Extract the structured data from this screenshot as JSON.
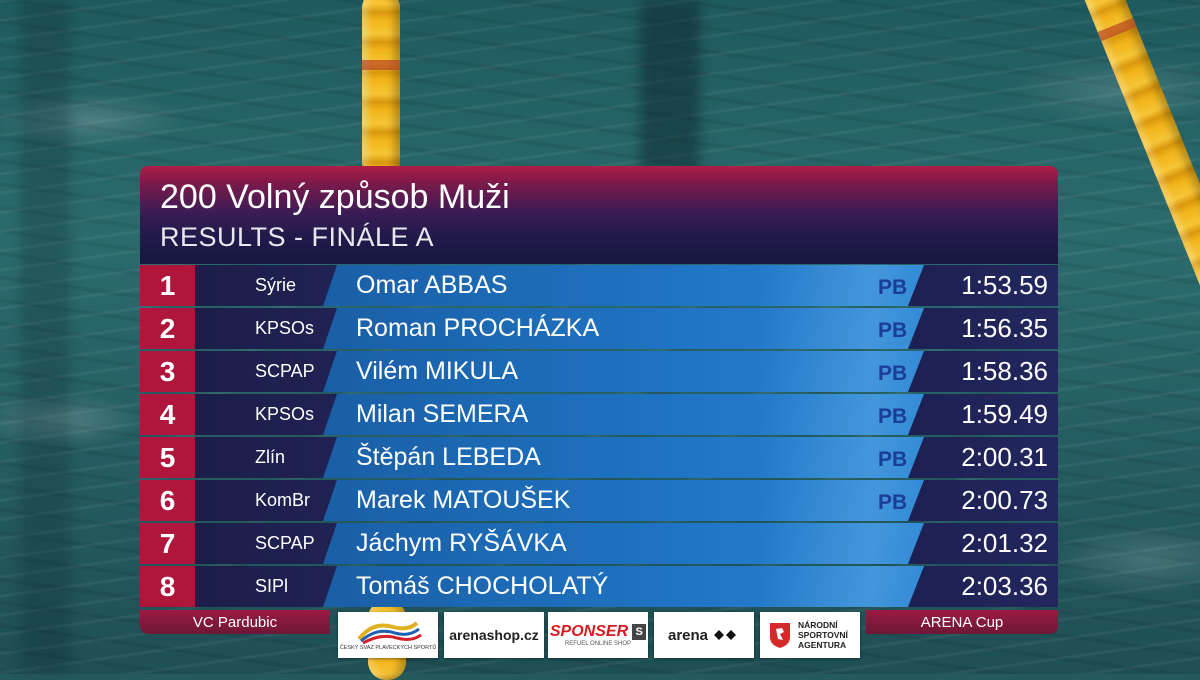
{
  "header": {
    "title": "200 Volný způsob Muži",
    "subtitle": "RESULTS - FINÁLE A"
  },
  "results": [
    {
      "rank": "1",
      "club": "Sýrie",
      "name": "Omar ABBAS",
      "pb": "PB",
      "time": "1:53.59"
    },
    {
      "rank": "2",
      "club": "KPSOs",
      "name": "Roman PROCHÁZKA",
      "pb": "PB",
      "time": "1:56.35"
    },
    {
      "rank": "3",
      "club": "SCPAP",
      "name": "Vilém MIKULA",
      "pb": "PB",
      "time": "1:58.36"
    },
    {
      "rank": "4",
      "club": "KPSOs",
      "name": "Milan SEMERA",
      "pb": "PB",
      "time": "1:59.49"
    },
    {
      "rank": "5",
      "club": "Zlín",
      "name": "Štěpán LEBEDA",
      "pb": "PB",
      "time": "2:00.31"
    },
    {
      "rank": "6",
      "club": "KomBr",
      "name": "Marek MATOUŠEK",
      "pb": "PB",
      "time": "2:00.73"
    },
    {
      "rank": "7",
      "club": "SCPAP",
      "name": "Jáchym RYŠÁVKA",
      "pb": "",
      "time": "2:01.32"
    },
    {
      "rank": "8",
      "club": "SIPl",
      "name": "Tomáš CHOCHOLATÝ",
      "pb": "",
      "time": "2:03.36"
    }
  ],
  "footer": {
    "left": "VC Pardubic",
    "right": "ARENA Cup"
  },
  "sponsors": {
    "cssp": {
      "caption": "ČESKÝ SVAZ PLAVECKÝCH SPORTŮ"
    },
    "arenashop": {
      "text": "arenashop.cz"
    },
    "sponser": {
      "text": "SPONSER",
      "sub": "REFUEL ONLINE SHOP"
    },
    "arena": {
      "text": "arena"
    },
    "nsa": {
      "text": "NÁRODNÍ SPORTOVNÍ AGENTURA"
    }
  },
  "colors": {
    "rank_red": "#b0163c",
    "name_blue": "#1f73c2",
    "dark_navy": "#1c1d49",
    "pb_text": "#1b3d9a"
  }
}
